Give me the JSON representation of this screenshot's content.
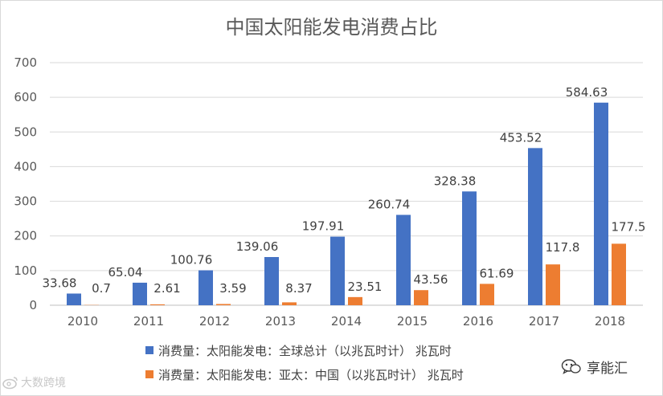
{
  "chart_data": {
    "type": "bar",
    "title": "中国太阳能发电消费占比",
    "categories": [
      "2010",
      "2011",
      "2012",
      "2013",
      "2014",
      "2015",
      "2016",
      "2017",
      "2018"
    ],
    "series": [
      {
        "name": "消费量：太阳能发电：全球总计（以兆瓦时计） 兆瓦时",
        "color": "#4472c4",
        "values": [
          33.68,
          65.04,
          100.76,
          139.06,
          197.91,
          260.74,
          328.38,
          453.52,
          584.63
        ],
        "labels": [
          "33.68",
          "65.04",
          "100.76",
          "139.06",
          "197.91",
          "260.74",
          "328.38",
          "453.52",
          "584.63"
        ]
      },
      {
        "name": "消费量：太阳能发电：亚太：中国（以兆瓦时计） 兆瓦时",
        "color": "#ed7d31",
        "values": [
          0.7,
          2.61,
          3.59,
          8.37,
          23.51,
          43.56,
          61.69,
          117.8,
          177.5
        ],
        "labels": [
          "0.7",
          "2.61",
          "3.59",
          "8.37",
          "23.51",
          "43.56",
          "61.69",
          "117.8",
          "177.5"
        ]
      }
    ],
    "ylim": [
      0,
      700
    ],
    "yticks": [
      "0",
      "100",
      "200",
      "300",
      "400",
      "500",
      "600",
      "700"
    ],
    "xlabel": "",
    "ylabel": "",
    "grid": true,
    "legend_position": "bottom"
  },
  "watermarks": {
    "left_text": "大数跨境",
    "left_icon": "sina-weibo-icon",
    "right_text": "享能汇",
    "right_icon": "wechat-icon"
  }
}
